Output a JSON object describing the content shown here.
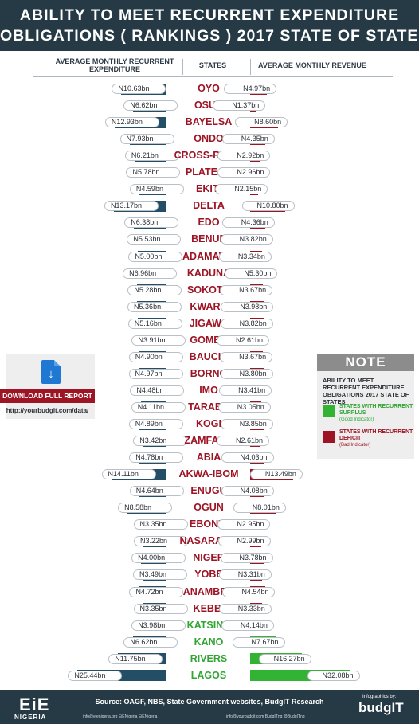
{
  "header": {
    "line1": "ABILITY TO MEET RECURRENT EXPENDITURE",
    "line2": "OBLIGATIONS ( RANKINGS ) 2017 STATE OF STATES"
  },
  "columns": {
    "left": "AVERAGE MONTHLY RECURRENT EXPENDITURE",
    "middle": "STATES",
    "right": "AVERAGE MONTHLY REVENUE"
  },
  "chart_data": {
    "type": "bar",
    "orientation": "horizontal-butterfly",
    "title": "ABILITY TO MEET RECURRENT EXPENDITURE OBLIGATIONS ( RANKINGS ) 2017 STATE OF STATES",
    "unit": "N billion",
    "rows": [
      {
        "state": "OYO",
        "exp": 10.63,
        "rev": 4.97,
        "exp_label": "N10.63bn",
        "rev_label": "N4.97bn",
        "status": "deficit"
      },
      {
        "state": "OSUN",
        "exp": 6.62,
        "rev": 1.37,
        "exp_label": "N6.62bn",
        "rev_label": "N1.37bn",
        "status": "deficit"
      },
      {
        "state": "BAYELSA",
        "exp": 12.93,
        "rev": 8.6,
        "exp_label": "N12.93bn",
        "rev_label": "N8.60bn",
        "status": "deficit"
      },
      {
        "state": "ONDO",
        "exp": 7.93,
        "rev": 4.35,
        "exp_label": "N7.93bn",
        "rev_label": "N4.35bn",
        "status": "deficit"
      },
      {
        "state": "CROSS-RIVER",
        "exp": 6.21,
        "rev": 2.92,
        "exp_label": "N6.21bn",
        "rev_label": "N2.92bn",
        "status": "deficit"
      },
      {
        "state": "PLATEAU",
        "exp": 5.78,
        "rev": 2.96,
        "exp_label": "N5.78bn",
        "rev_label": "N2.96bn",
        "status": "deficit"
      },
      {
        "state": "EKITI",
        "exp": 4.59,
        "rev": 2.15,
        "exp_label": "N4.59bn",
        "rev_label": "N2.15bn",
        "status": "deficit"
      },
      {
        "state": "DELTA",
        "exp": 13.17,
        "rev": 10.8,
        "exp_label": "N13.17bn",
        "rev_label": "N10.80bn",
        "status": "deficit"
      },
      {
        "state": "EDO",
        "exp": 6.38,
        "rev": 4.36,
        "exp_label": "N6.38bn",
        "rev_label": "N4.36bn",
        "status": "deficit"
      },
      {
        "state": "BENUE",
        "exp": 5.53,
        "rev": 3.82,
        "exp_label": "N5.53bn",
        "rev_label": "N3.82bn",
        "status": "deficit"
      },
      {
        "state": "ADAMAWA",
        "exp": 5.0,
        "rev": 3.34,
        "exp_label": "N5.00bn",
        "rev_label": "N3.34bn",
        "status": "deficit"
      },
      {
        "state": "KADUNA",
        "exp": 6.96,
        "rev": 5.3,
        "exp_label": "N6.96bn",
        "rev_label": "N5.30bn",
        "status": "deficit"
      },
      {
        "state": "SOKOTO",
        "exp": 5.28,
        "rev": 3.67,
        "exp_label": "N5.28bn",
        "rev_label": "N3.67bn",
        "status": "deficit"
      },
      {
        "state": "KWARA",
        "exp": 5.36,
        "rev": 3.98,
        "exp_label": "N5.36bn",
        "rev_label": "N3.98bn",
        "status": "deficit"
      },
      {
        "state": "JIGAWA",
        "exp": 5.16,
        "rev": 3.82,
        "exp_label": "N5.16bn",
        "rev_label": "N3.82bn",
        "status": "deficit"
      },
      {
        "state": "GOMBE",
        "exp": 3.91,
        "rev": 2.61,
        "exp_label": "N3.91bn",
        "rev_label": "N2.61bn",
        "status": "deficit"
      },
      {
        "state": "BAUCHI",
        "exp": 4.9,
        "rev": 3.67,
        "exp_label": "N4.90bn",
        "rev_label": "N3.67bn",
        "status": "deficit"
      },
      {
        "state": "BORNO",
        "exp": 4.97,
        "rev": 3.8,
        "exp_label": "N4.97bn",
        "rev_label": "N3.80bn",
        "status": "deficit"
      },
      {
        "state": "IMO",
        "exp": 4.48,
        "rev": 3.41,
        "exp_label": "N4.48bn",
        "rev_label": "N3.41bn",
        "status": "deficit"
      },
      {
        "state": "TARABA",
        "exp": 4.11,
        "rev": 3.05,
        "exp_label": "N4.11bn",
        "rev_label": "N3.05bn",
        "status": "deficit"
      },
      {
        "state": "KOGI",
        "exp": 4.89,
        "rev": 3.85,
        "exp_label": "N4.89bn",
        "rev_label": "N3.85bn",
        "status": "deficit"
      },
      {
        "state": "ZAMFARA",
        "exp": 3.42,
        "rev": 2.61,
        "exp_label": "N3.42bn",
        "rev_label": "N2.61bn",
        "status": "deficit"
      },
      {
        "state": "ABIA",
        "exp": 4.78,
        "rev": 4.03,
        "exp_label": "N4.78bn",
        "rev_label": "N4.03bn",
        "status": "deficit"
      },
      {
        "state": "AKWA-IBOM",
        "exp": 14.11,
        "rev": 13.49,
        "exp_label": "N14.11bn",
        "rev_label": "N13.49bn",
        "status": "deficit"
      },
      {
        "state": "ENUGU",
        "exp": 4.64,
        "rev": 4.08,
        "exp_label": "N4.64bn",
        "rev_label": "N4.08bn",
        "status": "deficit"
      },
      {
        "state": "OGUN",
        "exp": 8.58,
        "rev": 8.01,
        "exp_label": "N8.58bn",
        "rev_label": "N8.01bn",
        "status": "deficit"
      },
      {
        "state": "EBONYI",
        "exp": 3.35,
        "rev": 2.95,
        "exp_label": "N3.35bn",
        "rev_label": "N2.95bn",
        "status": "deficit"
      },
      {
        "state": "NASARAWA",
        "exp": 3.22,
        "rev": 2.99,
        "exp_label": "N3.22bn",
        "rev_label": "N2.99bn",
        "status": "deficit"
      },
      {
        "state": "NIGER",
        "exp": 4.0,
        "rev": 3.78,
        "exp_label": "N4.00bn",
        "rev_label": "N3.78bn",
        "status": "deficit"
      },
      {
        "state": "YOBE",
        "exp": 3.49,
        "rev": 3.31,
        "exp_label": "N3.49bn",
        "rev_label": "N3.31bn",
        "status": "deficit"
      },
      {
        "state": "ANAMBRA",
        "exp": 4.72,
        "rev": 4.54,
        "exp_label": "N4.72bn",
        "rev_label": "N4.54bn",
        "status": "deficit"
      },
      {
        "state": "KEBBI",
        "exp": 3.35,
        "rev": 3.33,
        "exp_label": "N3.35bn",
        "rev_label": "N3.33bn",
        "status": "deficit"
      },
      {
        "state": "KATSINA",
        "exp": 3.98,
        "rev": 4.14,
        "exp_label": "N3.98bn",
        "rev_label": "N4.14bn",
        "status": "surplus"
      },
      {
        "state": "KANO",
        "exp": 6.62,
        "rev": 7.67,
        "exp_label": "N6.62bn",
        "rev_label": "N7.67bn",
        "status": "surplus"
      },
      {
        "state": "RIVERS",
        "exp": 11.75,
        "rev": 16.27,
        "exp_label": "N11.75bn",
        "rev_label": "N16.27bn",
        "status": "surplus"
      },
      {
        "state": "LAGOS",
        "exp": 25.44,
        "rev": 32.08,
        "exp_label": "N25.44bn",
        "rev_label": "N32.08bn",
        "status": "surplus"
      }
    ],
    "colors": {
      "expenditure": "#244e66",
      "deficit": "#9d1424",
      "surplus": "#32b333"
    }
  },
  "download": {
    "button_label": "DOWNLOAD FULL REPORT",
    "url": "http://yourbudgit.com/data/",
    "icon": "download-document-icon"
  },
  "note": {
    "title": "NOTE",
    "text": "ABILITY TO MEET RECURRENT EXPENDITURE OBLIGATIONS 2017 STATE OF STATES",
    "surplus_label": "STATES WITH RECURRENT SURPLUS",
    "surplus_sub": "(Good Indicator)",
    "deficit_label": "STATES WITH RECURRENT DEFICIT",
    "deficit_sub": "(Bad Indicator)"
  },
  "footer": {
    "logo_mark": "EiE",
    "logo_text": "NIGERIA",
    "source": "Source: OAGF, NBS, State Government websites, BudgIT Research",
    "infographics_by": "Infographics by:",
    "brand": "budgIT",
    "contacts_left": "info@eienigeria.org    EiENigeria    EiENigeria",
    "contacts_right": "info@yourbudgit.com    BudgITng    @BudgITng"
  }
}
